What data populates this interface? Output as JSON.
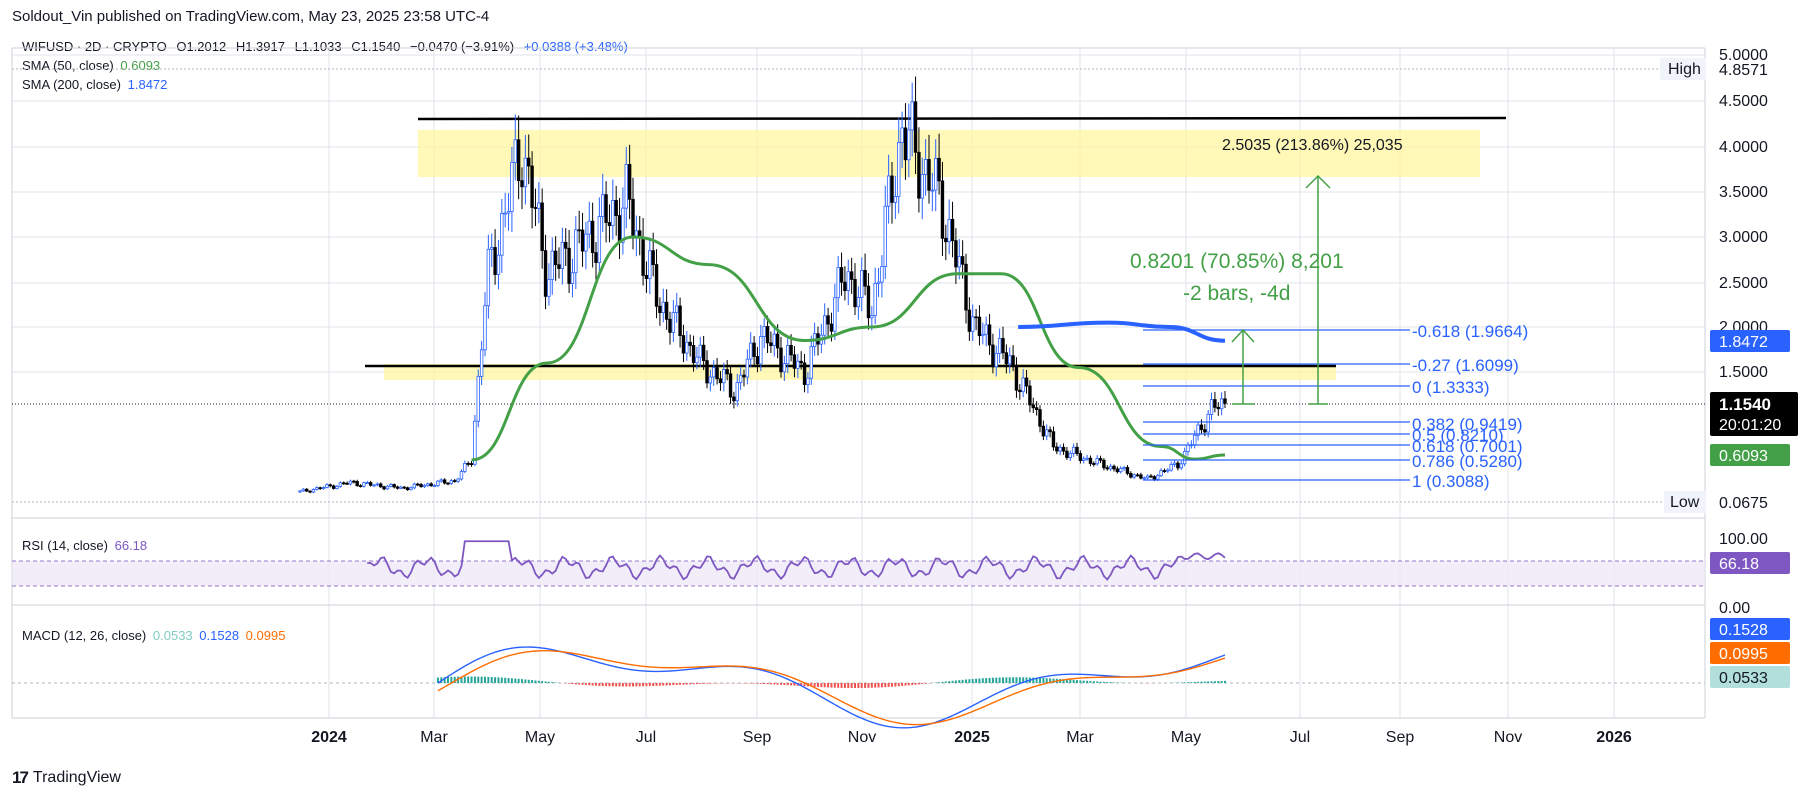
{
  "header": {
    "published": "Soldout_Vin published on TradingView.com, May 23, 2025 23:58 UTC-4"
  },
  "symbol": {
    "name": "WIFUSD · 2D · CRYPTO",
    "open": "O1.2012",
    "high": "H1.3917",
    "low": "L1.1033",
    "close": "C1.1540",
    "change": "−0.0470 (−3.91%)",
    "change2": "+0.0388 (+3.48%)"
  },
  "indicators": {
    "sma50": {
      "label": "SMA (50, close)",
      "value": "0.6093",
      "color": "#43a047"
    },
    "sma200": {
      "label": "SMA (200, close)",
      "value": "1.8472",
      "color": "#2962ff"
    },
    "rsi": {
      "label": "RSI (14, close)",
      "value": "66.18",
      "color": "#7e57c2"
    },
    "macd": {
      "label": "MACD (12, 26, close)",
      "hist": "0.0533",
      "macd": "0.1528",
      "signal": "0.0995"
    }
  },
  "axis": {
    "price_ticks": [
      "5.0000",
      "4.5000",
      "4.0000",
      "3.5000",
      "3.0000",
      "2.5000",
      "2.0000",
      "1.5000"
    ],
    "high_label": "High",
    "high_value": "4.8571",
    "low_label": "Low",
    "low_value": "0.0675",
    "last_price": "1.1540",
    "countdown": "20:01:20",
    "sma200_tag": "1.8472",
    "sma50_tag": "0.6093",
    "rsi_ticks": [
      "100.00",
      "0.00"
    ],
    "rsi_tag": "66.18",
    "macd_tags": [
      "0.1528",
      "0.0995",
      "0.0533"
    ],
    "time_ticks": [
      "2024",
      "Mar",
      "May",
      "Jul",
      "Sep",
      "Nov",
      "2025",
      "Mar",
      "May",
      "Jul",
      "Sep",
      "Nov",
      "2026"
    ]
  },
  "annotations": {
    "measure_big": "2.5035 (213.86%) 25,035",
    "measure_small_1": "0.8201 (70.85%) 8,201",
    "measure_small_2": "-2 bars, -4d",
    "fib": [
      "-0.618 (1.9664)",
      "-0.27 (1.6099)",
      "0 (1.3333)",
      "0.382 (0.9419)",
      "0.5 (0.8210)",
      "0.618 (0.7001)",
      "0.786 (0.5280)",
      "1 (0.3088)"
    ]
  },
  "chart_data": {
    "type": "candlestick",
    "symbol": "WIFUSD",
    "interval": "2D",
    "x_range": [
      "2023-11-20",
      "2026-03-01"
    ],
    "ylim": [
      0.0675,
      5.0
    ],
    "price_path": [
      {
        "x": "2023-11-20",
        "y": 0.18
      },
      {
        "x": "2023-12-20",
        "y": 0.28
      },
      {
        "x": "2024-01-20",
        "y": 0.22
      },
      {
        "x": "2024-02-20",
        "y": 0.3
      },
      {
        "x": "2024-03-01",
        "y": 0.55
      },
      {
        "x": "2024-03-10",
        "y": 2.5
      },
      {
        "x": "2024-03-31",
        "y": 4.0
      },
      {
        "x": "2024-04-15",
        "y": 2.6
      },
      {
        "x": "2024-05-10",
        "y": 3.0
      },
      {
        "x": "2024-06-01",
        "y": 3.4
      },
      {
        "x": "2024-06-20",
        "y": 2.3
      },
      {
        "x": "2024-07-15",
        "y": 1.6
      },
      {
        "x": "2024-08-05",
        "y": 1.3
      },
      {
        "x": "2024-08-20",
        "y": 1.9
      },
      {
        "x": "2024-09-15",
        "y": 1.5
      },
      {
        "x": "2024-10-10",
        "y": 2.6
      },
      {
        "x": "2024-10-25",
        "y": 2.2
      },
      {
        "x": "2024-11-12",
        "y": 4.2
      },
      {
        "x": "2024-12-05",
        "y": 3.4
      },
      {
        "x": "2024-12-25",
        "y": 2.0
      },
      {
        "x": "2025-01-15",
        "y": 1.6
      },
      {
        "x": "2025-02-10",
        "y": 0.7
      },
      {
        "x": "2025-03-10",
        "y": 0.5
      },
      {
        "x": "2025-04-07",
        "y": 0.32
      },
      {
        "x": "2025-04-25",
        "y": 0.5
      },
      {
        "x": "2025-05-15",
        "y": 1.1
      },
      {
        "x": "2025-05-23",
        "y": 1.154
      }
    ],
    "sma50": [
      {
        "x": "2024-03-01",
        "y": 0.55
      },
      {
        "x": "2024-04-15",
        "y": 1.6
      },
      {
        "x": "2024-06-05",
        "y": 3.0
      },
      {
        "x": "2024-07-20",
        "y": 2.7
      },
      {
        "x": "2024-09-15",
        "y": 1.85
      },
      {
        "x": "2024-10-25",
        "y": 2.0
      },
      {
        "x": "2024-12-15",
        "y": 2.6
      },
      {
        "x": "2025-01-10",
        "y": 2.6
      },
      {
        "x": "2025-02-25",
        "y": 1.55
      },
      {
        "x": "2025-04-15",
        "y": 0.7
      },
      {
        "x": "2025-05-05",
        "y": 0.56
      },
      {
        "x": "2025-05-23",
        "y": 0.6093
      }
    ],
    "sma200": [
      {
        "x": "2025-01-20",
        "y": 2.0
      },
      {
        "x": "2025-03-15",
        "y": 2.05
      },
      {
        "x": "2025-04-20",
        "y": 2.0
      },
      {
        "x": "2025-05-23",
        "y": 1.8472
      }
    ],
    "last": {
      "open": 1.2012,
      "high": 1.3917,
      "low": 1.1033,
      "close": 1.154
    }
  }
}
